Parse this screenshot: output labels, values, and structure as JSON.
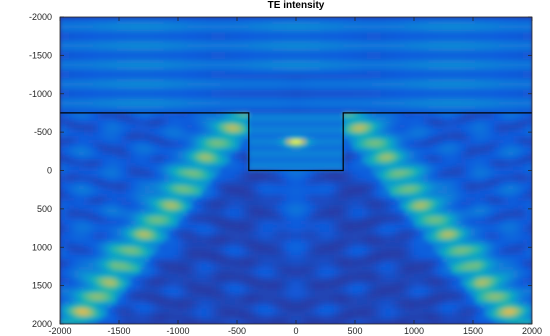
{
  "chart_data": {
    "type": "heatmap",
    "title": "TE intensity",
    "xlabel": "",
    "ylabel": "",
    "xlim": [
      -2000,
      2000
    ],
    "ylim": [
      -2000,
      2000
    ],
    "y_direction": "reversed",
    "x_ticks": [
      -2000,
      -1500,
      -1000,
      -500,
      0,
      500,
      1000,
      1500,
      2000
    ],
    "y_ticks": [
      -2000,
      -1500,
      -1000,
      -500,
      0,
      500,
      1000,
      1500,
      2000
    ],
    "x_tick_labels": [
      "-2000",
      "-1500",
      "-1000",
      "-500",
      "0",
      "500",
      "1000",
      "1500",
      "2000"
    ],
    "y_tick_labels": [
      "-2000",
      "-1500",
      "-1000",
      "-500",
      "0",
      "500",
      "1000",
      "1500",
      "2000"
    ],
    "colormap": "parula",
    "colors": {
      "low": "#352a87",
      "mid": "#1fa8c9",
      "high": "#f9fb0e",
      "boundary": "#000000"
    },
    "structure_outline": {
      "x": [
        -2000,
        -400,
        -400,
        400,
        400,
        2000
      ],
      "y": [
        -750,
        -750,
        0,
        0,
        -750,
        -750
      ]
    },
    "hotspot": {
      "x": 0,
      "y": -370
    },
    "grid": false,
    "legend": "none"
  }
}
